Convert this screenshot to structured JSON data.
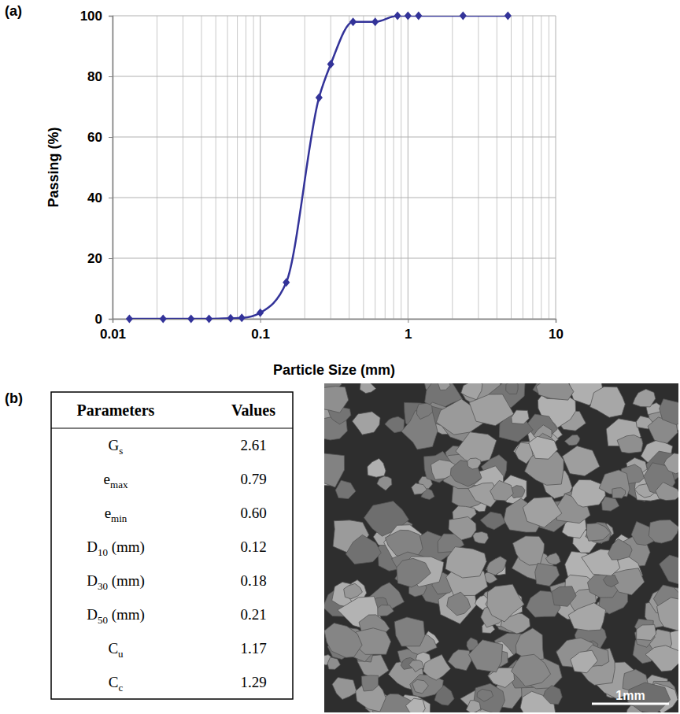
{
  "chart_data": {
    "type": "line",
    "panel_label": "(a)",
    "x_label": "Particle Size (mm)",
    "y_label": "Passing (%)",
    "x": [
      0.013,
      0.022,
      0.034,
      0.045,
      0.063,
      0.075,
      0.1,
      0.15,
      0.25,
      0.3,
      0.425,
      0.6,
      0.85,
      1.0,
      1.18,
      2.36,
      4.75
    ],
    "values": [
      0,
      0,
      0,
      0,
      0.2,
      0.3,
      2,
      12,
      73,
      84,
      98,
      98,
      100,
      100,
      100,
      100,
      100
    ],
    "color": "#333399",
    "marker": "diamond",
    "line_style": "solid",
    "xlim": [
      0.01,
      10
    ],
    "xticks": [
      0.01,
      0.1,
      1,
      10
    ],
    "ylim": [
      0,
      100
    ],
    "yticks": [
      0,
      20,
      40,
      60,
      80,
      100
    ],
    "log": "x",
    "grid": true
  },
  "table": {
    "panel_label": "(b)",
    "header": [
      "Parameters",
      "Values"
    ],
    "rows": [
      {
        "symbol": "G",
        "sub": "s",
        "unit": "",
        "value": "2.61"
      },
      {
        "symbol": "e",
        "sub": "max",
        "unit": "",
        "value": "0.79"
      },
      {
        "symbol": "e",
        "sub": "min",
        "unit": "",
        "value": "0.60"
      },
      {
        "symbol": "D",
        "sub": "10",
        "unit": "(mm)",
        "value": "0.12"
      },
      {
        "symbol": "D",
        "sub": "30",
        "unit": "(mm)",
        "value": "0.18"
      },
      {
        "symbol": "D",
        "sub": "50",
        "unit": "(mm)",
        "value": "0.21"
      },
      {
        "symbol": "C",
        "sub": "u",
        "unit": "",
        "value": "1.17"
      },
      {
        "symbol": "C",
        "sub": "c",
        "unit": "",
        "value": "1.29"
      }
    ]
  },
  "image": {
    "scale_bar": "1mm"
  }
}
